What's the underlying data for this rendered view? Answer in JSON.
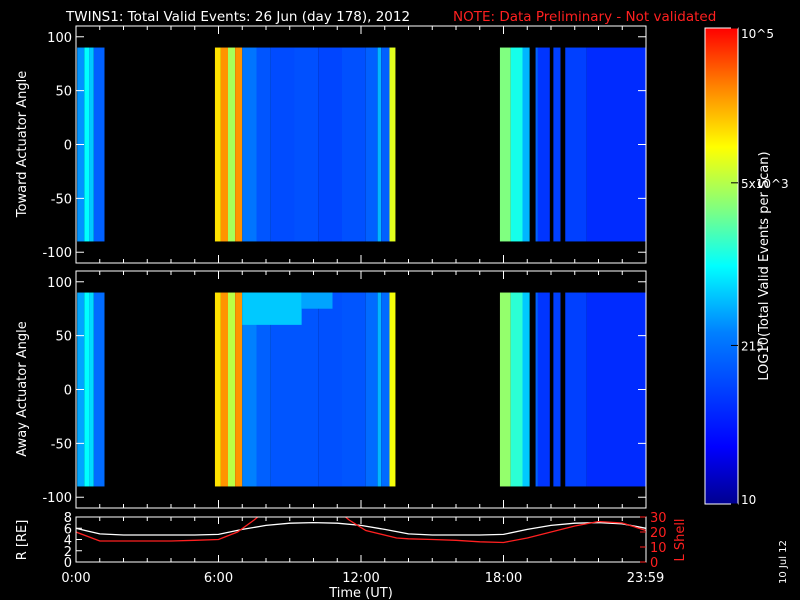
{
  "header": {
    "title": "TWINS1: Total Valid Events: 26 Jun (day 178), 2012",
    "note": "NOTE: Data Preliminary - Not validated"
  },
  "side_date": "10 Jul 12",
  "colorbar": {
    "label": "LOG10(Total Valid Events per Scan)",
    "ticks": [
      {
        "label": "10",
        "value": 10
      },
      {
        "label": "215",
        "value": 215
      },
      {
        "label": "5x10^3",
        "value": 5000
      },
      {
        "label": "10^5",
        "value": 100000
      }
    ],
    "range": [
      10,
      100000
    ],
    "scale": "log"
  },
  "colors": {
    "title_note": "#ff2020",
    "ephem_R": "#ffffff",
    "ephem_L": "#ff2020"
  },
  "chart_data": [
    {
      "type": "heatmap",
      "ylabel": "Toward Actuator Angle",
      "ylim": [
        -110,
        110
      ],
      "yticks": [
        100,
        50,
        0,
        -50,
        -100
      ],
      "xlim": [
        0,
        24
      ],
      "data_angle_range": [
        -90,
        90
      ],
      "columns": [
        {
          "t0": 0.05,
          "t1": 0.35,
          "level": 0.38
        },
        {
          "t0": 0.35,
          "t1": 0.55,
          "level": 0.5
        },
        {
          "t0": 0.55,
          "t1": 0.75,
          "level": 0.44
        },
        {
          "t0": 0.75,
          "t1": 1.2,
          "level": 0.3
        },
        {
          "t0": 5.85,
          "t1": 6.1,
          "level": 0.78
        },
        {
          "t0": 6.1,
          "t1": 6.4,
          "level": 0.86
        },
        {
          "t0": 6.4,
          "t1": 6.7,
          "level": 0.66
        },
        {
          "t0": 6.7,
          "t1": 7.0,
          "level": 0.86
        },
        {
          "t0": 7.0,
          "t1": 7.6,
          "level": 0.34
        },
        {
          "t0": 7.6,
          "t1": 8.2,
          "level": 0.28
        },
        {
          "t0": 8.2,
          "t1": 9.2,
          "level": 0.26
        },
        {
          "t0": 9.2,
          "t1": 10.2,
          "level": 0.27
        },
        {
          "t0": 10.2,
          "t1": 11.2,
          "level": 0.25
        },
        {
          "t0": 11.2,
          "t1": 12.2,
          "level": 0.27
        },
        {
          "t0": 12.2,
          "t1": 12.7,
          "level": 0.3
        },
        {
          "t0": 12.7,
          "t1": 12.85,
          "level": 0.42
        },
        {
          "t0": 12.85,
          "t1": 13.2,
          "level": 0.3
        },
        {
          "t0": 13.2,
          "t1": 13.45,
          "level": 0.72
        },
        {
          "t0": 17.85,
          "t1": 18.3,
          "level": 0.62
        },
        {
          "t0": 18.3,
          "t1": 18.8,
          "level": 0.52
        },
        {
          "t0": 18.8,
          "t1": 19.1,
          "level": 0.42
        },
        {
          "t0": 19.35,
          "t1": 19.45,
          "level": 0.3
        },
        {
          "t0": 19.45,
          "t1": 19.95,
          "level": 0.22
        },
        {
          "t0": 20.1,
          "t1": 20.4,
          "level": 0.24
        },
        {
          "t0": 20.6,
          "t1": 21.5,
          "level": 0.24
        },
        {
          "t0": 21.5,
          "t1": 23.99,
          "level": 0.2
        }
      ]
    },
    {
      "type": "heatmap",
      "ylabel": "Away Actuator Angle",
      "ylim": [
        -110,
        110
      ],
      "yticks": [
        100,
        50,
        0,
        -50,
        -100
      ],
      "xlim": [
        0,
        24
      ],
      "data_angle_range": [
        -90,
        90
      ],
      "columns": [
        {
          "t0": 0.05,
          "t1": 0.35,
          "level": 0.4
        },
        {
          "t0": 0.35,
          "t1": 0.55,
          "level": 0.5
        },
        {
          "t0": 0.55,
          "t1": 0.75,
          "level": 0.46
        },
        {
          "t0": 0.75,
          "t1": 1.2,
          "level": 0.32
        },
        {
          "t0": 5.85,
          "t1": 6.1,
          "level": 0.78
        },
        {
          "t0": 6.1,
          "t1": 6.4,
          "level": 0.86
        },
        {
          "t0": 6.4,
          "t1": 6.7,
          "level": 0.68
        },
        {
          "t0": 6.7,
          "t1": 7.0,
          "level": 0.86
        },
        {
          "t0": 7.0,
          "t1": 7.6,
          "level": 0.36
        },
        {
          "t0": 7.6,
          "t1": 8.2,
          "level": 0.3
        },
        {
          "t0": 8.2,
          "t1": 9.2,
          "level": 0.28
        },
        {
          "t0": 9.2,
          "t1": 10.2,
          "level": 0.28
        },
        {
          "t0": 10.2,
          "t1": 11.2,
          "level": 0.27
        },
        {
          "t0": 11.2,
          "t1": 12.2,
          "level": 0.28
        },
        {
          "t0": 12.2,
          "t1": 12.7,
          "level": 0.32
        },
        {
          "t0": 12.7,
          "t1": 12.85,
          "level": 0.42
        },
        {
          "t0": 12.85,
          "t1": 13.2,
          "level": 0.32
        },
        {
          "t0": 13.2,
          "t1": 13.45,
          "level": 0.74
        },
        {
          "t0": 17.85,
          "t1": 18.3,
          "level": 0.64
        },
        {
          "t0": 18.3,
          "t1": 18.8,
          "level": 0.54
        },
        {
          "t0": 18.8,
          "t1": 19.1,
          "level": 0.44
        },
        {
          "t0": 19.35,
          "t1": 19.45,
          "level": 0.3
        },
        {
          "t0": 19.45,
          "t1": 19.95,
          "level": 0.22
        },
        {
          "t0": 20.1,
          "t1": 20.4,
          "level": 0.24
        },
        {
          "t0": 20.6,
          "t1": 21.5,
          "level": 0.24
        },
        {
          "t0": 21.5,
          "t1": 23.99,
          "level": 0.2
        }
      ],
      "enhancements": [
        {
          "t0": 7.0,
          "t1": 9.5,
          "a0": 60,
          "a1": 90,
          "level": 0.44
        },
        {
          "t0": 9.5,
          "t1": 10.8,
          "a0": 75,
          "a1": 90,
          "level": 0.4
        }
      ]
    },
    {
      "type": "line",
      "xlabel": "Time (UT)",
      "xlim": [
        0,
        24
      ],
      "xticks": [
        {
          "label": "0:00",
          "value": 0
        },
        {
          "label": "6:00",
          "value": 6
        },
        {
          "label": "12:00",
          "value": 12
        },
        {
          "label": "18:00",
          "value": 18
        },
        {
          "label": "23:59",
          "value": 23.98
        }
      ],
      "ylabel_left": "R [RE]",
      "ylim_left": [
        0,
        8
      ],
      "yticks_left": [
        0,
        2,
        4,
        6,
        8
      ],
      "ylabel_right": "L Shell",
      "ylim_right": [
        0,
        30
      ],
      "yticks_right": [
        0,
        10,
        20,
        30
      ],
      "series": [
        {
          "name": "R [RE]",
          "axis": "left",
          "x": [
            0,
            0.5,
            1,
            2,
            3,
            4,
            5,
            6,
            7,
            8,
            9,
            10,
            11,
            12,
            13,
            14,
            15,
            16,
            17,
            18,
            19,
            20,
            21,
            22,
            23,
            24
          ],
          "y": [
            6.0,
            5.5,
            5.0,
            4.8,
            4.8,
            4.8,
            4.8,
            4.9,
            5.8,
            6.5,
            6.9,
            7.0,
            6.9,
            6.5,
            5.8,
            5.0,
            4.8,
            4.8,
            4.8,
            4.9,
            5.8,
            6.5,
            6.9,
            7.0,
            6.8,
            6.0
          ]
        },
        {
          "name": "L Shell",
          "axis": "right",
          "x": [
            0,
            0.5,
            1,
            2,
            3,
            4,
            5,
            6,
            6.8,
            7.5,
            7.8,
            11.2,
            11.5,
            12.2,
            13.5,
            14,
            15,
            16,
            17,
            18,
            19,
            20,
            21,
            22,
            23,
            24
          ],
          "y": [
            20,
            17,
            14,
            14,
            14,
            14,
            14.5,
            15,
            20,
            28,
            32,
            32,
            28,
            21,
            16,
            15.5,
            15,
            14.5,
            13.5,
            13,
            16,
            20,
            24,
            27,
            26,
            21
          ]
        }
      ]
    }
  ]
}
